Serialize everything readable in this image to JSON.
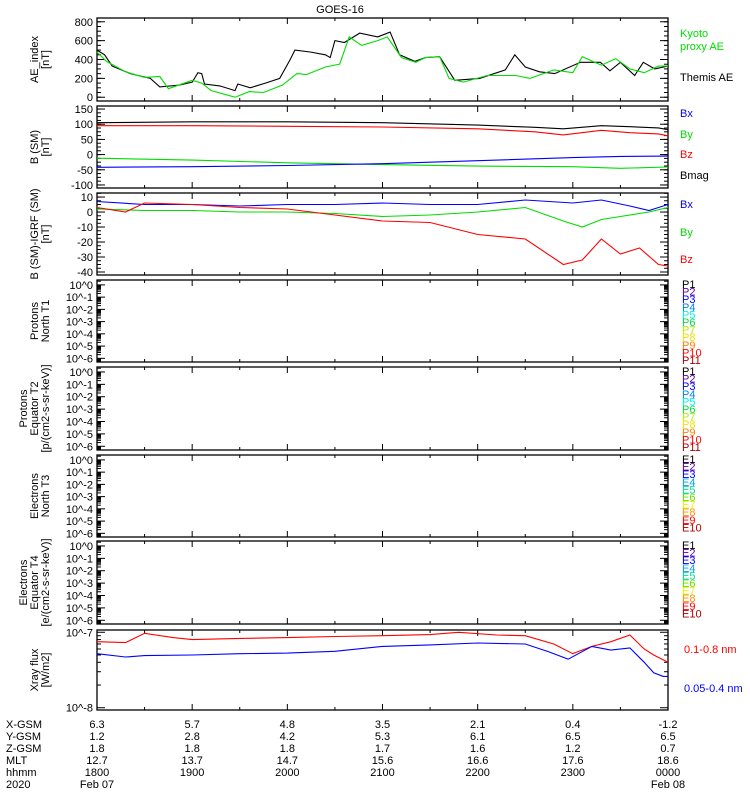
{
  "chart_data": {
    "type": "line",
    "title": "GOES-16",
    "x_unit": "hours since 2020 Feb 07 1800 UT",
    "xlim": [
      0,
      6
    ],
    "panels": [
      {
        "id": "ae",
        "ylabel": [
          "AE_index",
          "[nT]"
        ],
        "scale": "linear",
        "ylim": [
          -40,
          840
        ],
        "yticks": [
          0,
          200,
          400,
          600,
          800
        ],
        "ytick_labels": [
          "0",
          "200",
          "400",
          "600",
          "800"
        ],
        "legend": [
          {
            "text": "Kyoto",
            "color": "#00dd00"
          },
          {
            "text": "proxy AE",
            "color": "#00dd00"
          },
          {
            "text": "Themis AE",
            "color": "#000000"
          }
        ],
        "series": [
          {
            "name": "Themis AE",
            "color": "#000000",
            "x": [
              0,
              0.08,
              0.16,
              0.35,
              0.56,
              0.66,
              0.87,
              1.0,
              1.06,
              1.1,
              1.13,
              1.29,
              1.45,
              1.48,
              1.61,
              1.77,
              1.92,
              2.03,
              2.08,
              2.24,
              2.4,
              2.45,
              2.5,
              2.6,
              2.76,
              2.95,
              3.08,
              3.18,
              3.34,
              3.45,
              3.6,
              3.76,
              4.02,
              4.29,
              4.39,
              4.5,
              4.65,
              4.81,
              5.08,
              5.29,
              5.39,
              5.5,
              5.65,
              5.74,
              5.86,
              6.0
            ],
            "y": [
              500,
              450,
              330,
              250,
              200,
              110,
              130,
              160,
              260,
              250,
              140,
              120,
              70,
              140,
              100,
              150,
              200,
              400,
              500,
              480,
              450,
              420,
              600,
              580,
              680,
              640,
              690,
              450,
              380,
              420,
              430,
              180,
              200,
              290,
              450,
              320,
              270,
              250,
              370,
              370,
              280,
              370,
              230,
              370,
              300,
              330
            ]
          },
          {
            "name": "Kyoto proxy AE",
            "color": "#00dd00",
            "x": [
              0,
              0.1,
              0.3,
              0.5,
              0.66,
              0.75,
              1.0,
              1.1,
              1.2,
              1.45,
              1.6,
              1.75,
              1.95,
              2.1,
              2.2,
              2.4,
              2.55,
              2.65,
              2.78,
              2.95,
              3.05,
              3.2,
              3.35,
              3.45,
              3.6,
              3.7,
              3.85,
              4.1,
              4.2,
              4.4,
              4.55,
              4.8,
              5.0,
              5.1,
              5.3,
              5.45,
              5.6,
              5.75,
              5.9,
              6.0
            ],
            "y": [
              480,
              380,
              270,
              210,
              220,
              90,
              180,
              150,
              70,
              0,
              60,
              50,
              130,
              250,
              240,
              320,
              350,
              640,
              550,
              600,
              640,
              420,
              370,
              420,
              430,
              200,
              160,
              230,
              230,
              230,
              200,
              290,
              260,
              430,
              340,
              410,
              300,
              260,
              330,
              330
            ]
          }
        ]
      },
      {
        "id": "b_sm",
        "ylabel": [
          "B (SM)",
          "[nT]"
        ],
        "scale": "linear",
        "ylim": [
          -110,
          160
        ],
        "yticks": [
          -100,
          -50,
          0,
          50,
          100,
          150
        ],
        "ytick_labels": [
          "-100",
          "-50",
          "0",
          "50",
          "100",
          "150"
        ],
        "legend": [
          {
            "text": "Bx",
            "color": "#0000ff"
          },
          {
            "text": "By",
            "color": "#00dd00"
          },
          {
            "text": "Bz",
            "color": "#ff0000"
          },
          {
            "text": "Bmag",
            "color": "#000000"
          }
        ],
        "series": [
          {
            "name": "Bmag",
            "color": "#000000",
            "x": [
              0,
              1,
              2,
              3,
              4,
              4.6,
              4.9,
              5.3,
              5.6,
              5.9,
              6.0
            ],
            "y": [
              105,
              108,
              108,
              105,
              97,
              90,
              85,
              95,
              92,
              88,
              82
            ]
          },
          {
            "name": "Bz",
            "color": "#ff0000",
            "x": [
              0,
              1,
              2,
              3,
              4,
              4.6,
              4.9,
              5.3,
              5.6,
              5.9,
              6.0
            ],
            "y": [
              95,
              95,
              93,
              91,
              85,
              75,
              65,
              80,
              72,
              68,
              62
            ]
          },
          {
            "name": "By",
            "color": "#00dd00",
            "x": [
              0,
              1,
              2,
              3,
              4,
              5,
              5.5,
              6.0
            ],
            "y": [
              -12,
              -18,
              -27,
              -33,
              -38,
              -40,
              -45,
              -41
            ]
          },
          {
            "name": "Bx",
            "color": "#0000ff",
            "x": [
              0,
              1,
              2,
              3,
              4,
              5,
              5.5,
              6.0
            ],
            "y": [
              -42,
              -40,
              -36,
              -30,
              -20,
              -10,
              -6,
              -5
            ]
          }
        ]
      },
      {
        "id": "b_minus_igrf",
        "ylabel": [
          "B (SM)-IGRF (SM)",
          "[nT]"
        ],
        "scale": "linear",
        "ylim": [
          -42,
          12.7
        ],
        "yticks": [
          -40,
          -30,
          -20,
          -10,
          0,
          10
        ],
        "ytick_labels": [
          "-40",
          "-30",
          "-20",
          "-10",
          "0",
          "10"
        ],
        "legend": [
          {
            "text": "Bx",
            "color": "#0000ff"
          },
          {
            "text": "By",
            "color": "#00dd00"
          },
          {
            "text": "Bz",
            "color": "#ff0000"
          }
        ],
        "series": [
          {
            "name": "Bx",
            "color": "#0000ff",
            "x": [
              0,
              0.5,
              1,
              1.5,
              2,
              2.5,
              3,
              3.5,
              4,
              4.5,
              5,
              5.3,
              5.6,
              5.8,
              5.9,
              6.0
            ],
            "y": [
              7,
              5,
              5,
              4,
              5,
              5,
              6,
              5,
              5,
              8,
              6,
              8,
              4,
              1,
              3,
              5
            ]
          },
          {
            "name": "By",
            "color": "#00dd00",
            "x": [
              0,
              0.5,
              1,
              1.5,
              2,
              2.5,
              3,
              3.5,
              4,
              4.5,
              4.9,
              5.1,
              5.3,
              5.5,
              5.8,
              6.0
            ],
            "y": [
              2,
              1,
              1,
              0,
              0,
              -1,
              -3,
              -2,
              0,
              3,
              -6,
              -10,
              -5,
              -3,
              0,
              3
            ]
          },
          {
            "name": "Bz",
            "color": "#ff0000",
            "x": [
              0,
              0.3,
              0.5,
              1,
              1.5,
              2,
              2.5,
              3,
              3.5,
              4,
              4.5,
              4.9,
              5.1,
              5.3,
              5.5,
              5.7,
              5.9,
              6.0
            ],
            "y": [
              3,
              0,
              6,
              5,
              3,
              2,
              -2,
              -6,
              -7,
              -15,
              -18,
              -35,
              -32,
              -18,
              -28,
              -24,
              -35,
              -36
            ]
          }
        ]
      },
      {
        "id": "protons_t1",
        "ylabel": [
          "Protons",
          "North T1"
        ],
        "scale": "log",
        "ylim": [
          -6.3,
          0.4
        ],
        "yticks": [
          0,
          -1,
          -2,
          -3,
          -4,
          -5,
          -6
        ],
        "ytick_labels": [
          "10^0",
          "10^-1",
          "10^-2",
          "10^-3",
          "10^-4",
          "10^-5",
          "10^-6"
        ],
        "legend_small": true,
        "legend": [
          {
            "text": "P1",
            "color": "#000000"
          },
          {
            "text": "P2",
            "color": "#6000a0"
          },
          {
            "text": "P3",
            "color": "#0000ff"
          },
          {
            "text": "P4",
            "color": "#0080ff"
          },
          {
            "text": "P5",
            "color": "#00f0f0"
          },
          {
            "text": "P6",
            "color": "#00e040"
          },
          {
            "text": "P7",
            "color": "#b0f000"
          },
          {
            "text": "P8",
            "color": "#f0e000"
          },
          {
            "text": "P9",
            "color": "#ff8000"
          },
          {
            "text": "P10",
            "color": "#ff0000"
          },
          {
            "text": "P11",
            "color": "#b00000"
          }
        ],
        "series": []
      },
      {
        "id": "protons_t2",
        "ylabel": [
          "Protons",
          "Equator T2",
          "[p/(cm2-s-sr-keV)]"
        ],
        "scale": "log",
        "ylim": [
          -6.3,
          0.4
        ],
        "yticks": [
          0,
          -1,
          -2,
          -3,
          -4,
          -5,
          -6
        ],
        "ytick_labels": [
          "10^0",
          "10^-1",
          "10^-2",
          "10^-3",
          "10^-4",
          "10^-5",
          "10^-6"
        ],
        "legend_small": true,
        "legend": [
          {
            "text": "P1",
            "color": "#000000"
          },
          {
            "text": "P2",
            "color": "#6000a0"
          },
          {
            "text": "P3",
            "color": "#0000ff"
          },
          {
            "text": "P4",
            "color": "#0080ff"
          },
          {
            "text": "P5",
            "color": "#00f0f0"
          },
          {
            "text": "P6",
            "color": "#00e040"
          },
          {
            "text": "P7",
            "color": "#b0f000"
          },
          {
            "text": "P8",
            "color": "#f0e000"
          },
          {
            "text": "P9",
            "color": "#ff8000"
          },
          {
            "text": "P10",
            "color": "#ff0000"
          },
          {
            "text": "P11",
            "color": "#b00000"
          }
        ],
        "series": []
      },
      {
        "id": "electrons_t3",
        "ylabel": [
          "Electrons",
          "North T3"
        ],
        "scale": "log",
        "ylim": [
          -6.3,
          0.4
        ],
        "yticks": [
          0,
          -1,
          -2,
          -3,
          -4,
          -5,
          -6
        ],
        "ytick_labels": [
          "10^0",
          "10^-1",
          "10^-2",
          "10^-3",
          "10^-4",
          "10^-5",
          "10^-6"
        ],
        "legend_small": true,
        "legend": [
          {
            "text": "E1",
            "color": "#000000"
          },
          {
            "text": "E2",
            "color": "#6000a0"
          },
          {
            "text": "E3",
            "color": "#0000ff"
          },
          {
            "text": "E4",
            "color": "#00a0ff"
          },
          {
            "text": "E5",
            "color": "#00e0a0"
          },
          {
            "text": "E6",
            "color": "#60e000"
          },
          {
            "text": "E7",
            "color": "#f0f000"
          },
          {
            "text": "E8",
            "color": "#ff9000"
          },
          {
            "text": "E9",
            "color": "#ff0000"
          },
          {
            "text": "E10",
            "color": "#b00000"
          }
        ],
        "series": []
      },
      {
        "id": "electrons_t4",
        "ylabel": [
          "Electrons",
          "Equator T4",
          "[e/(cm2-s-sr-keV)]"
        ],
        "scale": "log",
        "ylim": [
          -6.3,
          0.4
        ],
        "yticks": [
          0,
          -1,
          -2,
          -3,
          -4,
          -5,
          -6
        ],
        "ytick_labels": [
          "10^0",
          "10^-1",
          "10^-2",
          "10^-3",
          "10^-4",
          "10^-5",
          "10^-6"
        ],
        "legend_small": true,
        "legend": [
          {
            "text": "E1",
            "color": "#000000"
          },
          {
            "text": "E2",
            "color": "#6000a0"
          },
          {
            "text": "E3",
            "color": "#0000ff"
          },
          {
            "text": "E4",
            "color": "#00a0ff"
          },
          {
            "text": "E5",
            "color": "#00e0a0"
          },
          {
            "text": "E6",
            "color": "#60e000"
          },
          {
            "text": "E7",
            "color": "#f0f000"
          },
          {
            "text": "E8",
            "color": "#ff9000"
          },
          {
            "text": "E9",
            "color": "#ff0000"
          },
          {
            "text": "E10",
            "color": "#b00000"
          }
        ],
        "series": []
      },
      {
        "id": "xray",
        "ylabel": [
          "Xray flux",
          "[W/m2]"
        ],
        "scale": "log",
        "ylim": [
          -8.03,
          -6.97
        ],
        "yticks": [
          -8,
          -7
        ],
        "ytick_labels": [
          "10^-8",
          "10^-7"
        ],
        "legend": [
          {
            "text": "0.1-0.8 nm",
            "color": "#ff0000"
          },
          {
            "text": "0.05-0.4 nm",
            "color": "#0000ff"
          }
        ],
        "series": [
          {
            "name": "0.1-0.8 nm",
            "color": "#ff0000",
            "x": [
              0,
              0.3,
              0.5,
              0.8,
              1,
              1.5,
              2,
              2.5,
              3,
              3.5,
              3.8,
              4.2,
              4.5,
              4.8,
              5.0,
              5.2,
              5.4,
              5.6,
              5.75,
              5.85,
              6.0
            ],
            "y": [
              7.5e-08,
              7.3e-08,
              9.7e-08,
              8.5e-08,
              8e-08,
              8.3e-08,
              8.5e-08,
              8.8e-08,
              9e-08,
              9.3e-08,
              1e-07,
              9.2e-08,
              9e-08,
              7e-08,
              5.2e-08,
              6.5e-08,
              7.5e-08,
              9.2e-08,
              6e-08,
              5e-08,
              4e-08
            ]
          },
          {
            "name": "0.05-0.4 nm",
            "color": "#0000ff",
            "x": [
              0,
              0.3,
              0.5,
              1,
              1.5,
              2,
              2.5,
              3,
              3.5,
              4,
              4.5,
              4.75,
              4.95,
              5.2,
              5.4,
              5.6,
              5.75,
              5.85,
              5.95,
              6.0
            ],
            "y": [
              5.2e-08,
              4.7e-08,
              4.9e-08,
              5e-08,
              5.2e-08,
              5.3e-08,
              5.6e-08,
              6.5e-08,
              6.8e-08,
              7.2e-08,
              7e-08,
              5.5e-08,
              4.4e-08,
              6.5e-08,
              5.8e-08,
              6.2e-08,
              4e-08,
              2.9e-08,
              2.6e-08,
              2.6e-08
            ]
          }
        ]
      }
    ],
    "ephemeris": {
      "row_labels": [
        "X-GSM",
        "Y-GSM",
        "Z-GSM",
        "MLT",
        "hhmm",
        "2020"
      ],
      "columns": [
        [
          "6.3",
          "1.2",
          "1.8",
          "12.7",
          "1800",
          "Feb 07"
        ],
        [
          "5.7",
          "2.8",
          "1.8",
          "13.7",
          "1900",
          ""
        ],
        [
          "4.8",
          "4.2",
          "1.8",
          "14.7",
          "2000",
          ""
        ],
        [
          "3.5",
          "5.3",
          "1.7",
          "15.6",
          "2100",
          ""
        ],
        [
          "2.1",
          "6.1",
          "1.6",
          "16.6",
          "2200",
          ""
        ],
        [
          "0.4",
          "6.5",
          "1.2",
          "17.6",
          "2300",
          ""
        ],
        [
          "-1.2",
          "6.5",
          "0.7",
          "18.6",
          "0000",
          "Feb 08"
        ]
      ]
    }
  }
}
